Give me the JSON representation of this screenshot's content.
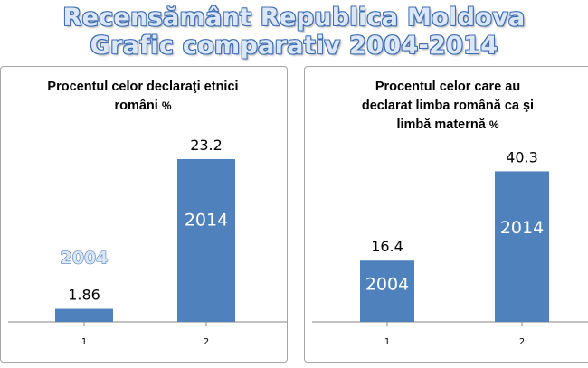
{
  "title_line1": "Recensământ Republica Moldova",
  "title_line2": "Grafic comparativ 2004-2014",
  "colors": {
    "bar": "#4f81bd",
    "title_fill": "#dbe7f6",
    "title_outline": "#3f6fb5"
  },
  "chart_data": [
    {
      "type": "bar",
      "title": "Procentul celor declaraţi etnici români %",
      "categories": [
        "1",
        "2"
      ],
      "values": [
        1.86,
        23.2
      ],
      "value_labels": [
        "1.86",
        "23.2"
      ],
      "year_labels": [
        "2004",
        "2014"
      ],
      "ylim": [
        0,
        25
      ],
      "grid": false,
      "legend": "none"
    },
    {
      "type": "bar",
      "title": "Procentul celor care au declarat limba română ca şi limbă maternă %",
      "categories": [
        "1",
        "2"
      ],
      "values": [
        16.4,
        40.3
      ],
      "value_labels": [
        "16.4",
        "40.3"
      ],
      "year_labels": [
        "2004",
        "2014"
      ],
      "ylim": [
        0,
        45
      ],
      "grid": false,
      "legend": "none"
    }
  ]
}
